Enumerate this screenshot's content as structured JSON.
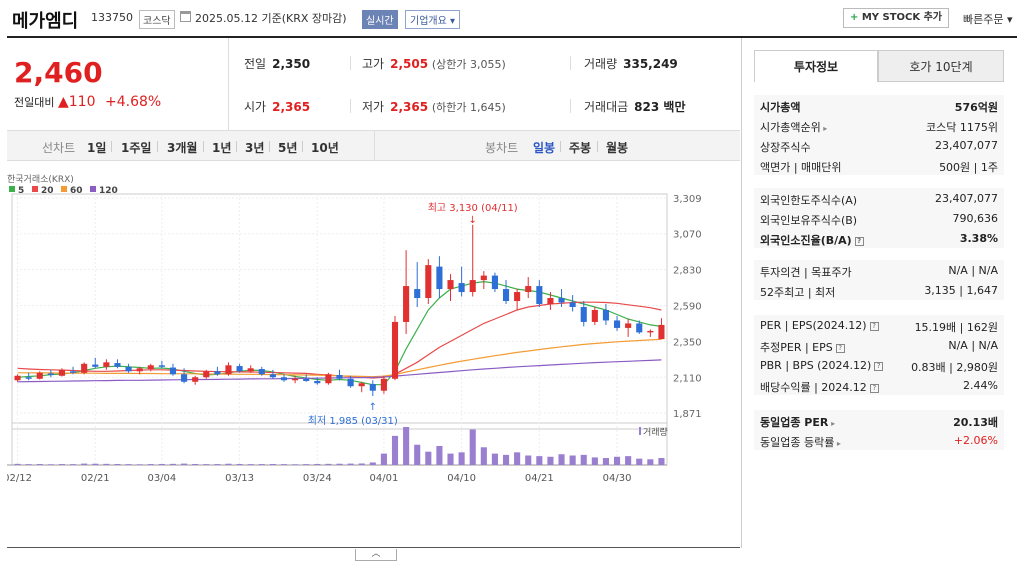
{
  "header": {
    "stock_name": "메가엠디",
    "stock_code": "133750",
    "market": "코스닥",
    "date": "2025.05.12 기준(KRX 장마감)",
    "realtime": "실시간",
    "corp_info": "기업개요 ▾",
    "mystock_label": "MY STOCK 추가",
    "quick_order": "빠른주문 ▾"
  },
  "price": {
    "current": "2,460",
    "diff_label": "전일대비",
    "diff_arrow": "▲",
    "diff_value": "110",
    "diff_pct": "+4.68%"
  },
  "stats": {
    "prev_label": "전일",
    "prev": "2,350",
    "high_label": "고가",
    "high": "2,505",
    "upper_label": "(상한가",
    "upper": "3,055",
    "upper_close": ")",
    "volume_label": "거래량",
    "volume": "335,249",
    "open_label": "시가",
    "open": "2,365",
    "low_label": "저가",
    "low": "2,365",
    "lower_label": "(하한가",
    "lower": "1,645",
    "lower_close": ")",
    "amount_label": "거래대금",
    "amount": "823 백만"
  },
  "period_tabs": {
    "label": "선차트",
    "items": [
      "1일",
      "1주일",
      "3개월",
      "1년",
      "3년",
      "5년",
      "10년"
    ]
  },
  "candle_tabs": {
    "label": "봉차트",
    "items": [
      "일봉",
      "주봉",
      "월봉"
    ],
    "active": "일봉"
  },
  "chart_data": {
    "type": "candlestick",
    "source_label": "한국거래소(KRX)",
    "legend": [
      {
        "name": "5",
        "color": "#3cb04a"
      },
      {
        "name": "20",
        "color": "#e84a4a"
      },
      {
        "name": "60",
        "color": "#f39c33"
      },
      {
        "name": "120",
        "color": "#8a5cc4"
      }
    ],
    "y_ticks": [
      "3,309",
      "3,070",
      "2,830",
      "2,590",
      "2,350",
      "2,110",
      "1,871"
    ],
    "y_tick_values": [
      3309,
      3070,
      2830,
      2590,
      2350,
      2110,
      1871
    ],
    "ylim": [
      1871,
      3309
    ],
    "x_ticks": [
      {
        "label": "02/12",
        "index": 0
      },
      {
        "label": "02/21",
        "index": 7
      },
      {
        "label": "03/04",
        "index": 13
      },
      {
        "label": "03/13",
        "index": 20
      },
      {
        "label": "03/24",
        "index": 27
      },
      {
        "label": "04/01",
        "index": 33
      },
      {
        "label": "04/10",
        "index": 40
      },
      {
        "label": "04/21",
        "index": 47
      },
      {
        "label": "04/30",
        "index": 54
      }
    ],
    "max_annotation": "최고 3,130 (04/11)",
    "min_annotation": "최저 1,985 (03/31)",
    "max_index": 41,
    "min_index": 32,
    "volume_label": "거래량",
    "candles": [
      [
        2090,
        2130,
        2080,
        2120
      ],
      [
        2110,
        2140,
        2090,
        2100
      ],
      [
        2100,
        2150,
        2095,
        2140
      ],
      [
        2135,
        2160,
        2110,
        2125
      ],
      [
        2120,
        2170,
        2115,
        2160
      ],
      [
        2150,
        2180,
        2130,
        2140
      ],
      [
        2140,
        2210,
        2130,
        2200
      ],
      [
        2195,
        2240,
        2170,
        2180
      ],
      [
        2180,
        2230,
        2160,
        2210
      ],
      [
        2205,
        2230,
        2170,
        2180
      ],
      [
        2180,
        2200,
        2140,
        2150
      ],
      [
        2150,
        2180,
        2130,
        2170
      ],
      [
        2165,
        2200,
        2150,
        2190
      ],
      [
        2190,
        2220,
        2170,
        2180
      ],
      [
        2175,
        2200,
        2120,
        2130
      ],
      [
        2130,
        2170,
        2070,
        2080
      ],
      [
        2080,
        2120,
        2060,
        2110
      ],
      [
        2110,
        2160,
        2100,
        2150
      ],
      [
        2150,
        2180,
        2120,
        2130
      ],
      [
        2130,
        2210,
        2120,
        2190
      ],
      [
        2185,
        2200,
        2140,
        2150
      ],
      [
        2150,
        2190,
        2140,
        2170
      ],
      [
        2165,
        2180,
        2120,
        2130
      ],
      [
        2130,
        2160,
        2100,
        2110
      ],
      [
        2110,
        2130,
        2080,
        2090
      ],
      [
        2090,
        2120,
        2070,
        2100
      ],
      [
        2100,
        2130,
        2080,
        2085
      ],
      [
        2085,
        2110,
        2060,
        2070
      ],
      [
        2070,
        2140,
        2060,
        2130
      ],
      [
        2125,
        2160,
        2090,
        2100
      ],
      [
        2100,
        2120,
        2040,
        2050
      ],
      [
        2050,
        2080,
        2010,
        2070
      ],
      [
        2065,
        2090,
        1985,
        2020
      ],
      [
        2020,
        2120,
        2000,
        2100
      ],
      [
        2100,
        2520,
        2090,
        2480
      ],
      [
        2480,
        2960,
        2400,
        2720
      ],
      [
        2700,
        2880,
        2580,
        2640
      ],
      [
        2640,
        2900,
        2600,
        2860
      ],
      [
        2850,
        2920,
        2640,
        2700
      ],
      [
        2700,
        2800,
        2620,
        2760
      ],
      [
        2740,
        2850,
        2650,
        2680
      ],
      [
        2680,
        3130,
        2650,
        2760
      ],
      [
        2760,
        2820,
        2700,
        2790
      ],
      [
        2790,
        2810,
        2680,
        2700
      ],
      [
        2700,
        2760,
        2600,
        2620
      ],
      [
        2620,
        2700,
        2560,
        2680
      ],
      [
        2680,
        2780,
        2640,
        2720
      ],
      [
        2720,
        2760,
        2580,
        2600
      ],
      [
        2600,
        2680,
        2560,
        2640
      ],
      [
        2640,
        2700,
        2580,
        2610
      ],
      [
        2610,
        2660,
        2550,
        2580
      ],
      [
        2580,
        2620,
        2450,
        2480
      ],
      [
        2480,
        2580,
        2460,
        2560
      ],
      [
        2560,
        2600,
        2460,
        2490
      ],
      [
        2490,
        2520,
        2420,
        2440
      ],
      [
        2440,
        2500,
        2380,
        2470
      ],
      [
        2470,
        2490,
        2400,
        2410
      ],
      [
        2410,
        2430,
        2380,
        2420
      ],
      [
        2365,
        2505,
        2365,
        2460
      ]
    ],
    "volumes": [
      18,
      14,
      16,
      12,
      15,
      14,
      22,
      20,
      18,
      16,
      14,
      12,
      15,
      16,
      18,
      22,
      16,
      14,
      15,
      20,
      16,
      14,
      15,
      16,
      14,
      12,
      14,
      16,
      18,
      20,
      22,
      24,
      40,
      180,
      460,
      600,
      320,
      210,
      300,
      180,
      200,
      560,
      280,
      180,
      160,
      200,
      150,
      140,
      130,
      170,
      150,
      160,
      120,
      110,
      130,
      140,
      100,
      90,
      110
    ],
    "ma_lines": {
      "ma5": [
        2110,
        2115,
        2120,
        2128,
        2132,
        2140,
        2155,
        2170,
        2180,
        2185,
        2180,
        2175,
        2170,
        2172,
        2165,
        2150,
        2135,
        2125,
        2130,
        2140,
        2150,
        2158,
        2155,
        2145,
        2130,
        2115,
        2105,
        2095,
        2090,
        2095,
        2090,
        2075,
        2060,
        2060,
        2150,
        2300,
        2430,
        2560,
        2640,
        2700,
        2720,
        2740,
        2750,
        2740,
        2720,
        2700,
        2690,
        2680,
        2660,
        2640,
        2620,
        2600,
        2580,
        2560,
        2530,
        2500,
        2480,
        2460,
        2450
      ],
      "ma20": [
        2170,
        2165,
        2162,
        2160,
        2158,
        2155,
        2152,
        2150,
        2150,
        2152,
        2155,
        2158,
        2160,
        2160,
        2158,
        2155,
        2152,
        2150,
        2148,
        2147,
        2146,
        2145,
        2144,
        2142,
        2140,
        2138,
        2136,
        2130,
        2125,
        2120,
        2115,
        2110,
        2105,
        2110,
        2130,
        2170,
        2210,
        2260,
        2310,
        2350,
        2390,
        2430,
        2470,
        2500,
        2530,
        2560,
        2580,
        2590,
        2600,
        2605,
        2610,
        2612,
        2612,
        2610,
        2605,
        2595,
        2585,
        2575,
        2560
      ],
      "ma60": [
        2140,
        2140,
        2139,
        2139,
        2138,
        2138,
        2137,
        2137,
        2136,
        2136,
        2136,
        2135,
        2135,
        2134,
        2134,
        2133,
        2133,
        2132,
        2132,
        2131,
        2130,
        2130,
        2129,
        2128,
        2127,
        2126,
        2125,
        2124,
        2122,
        2120,
        2118,
        2116,
        2114,
        2118,
        2128,
        2145,
        2160,
        2175,
        2190,
        2205,
        2218,
        2230,
        2242,
        2254,
        2265,
        2276,
        2286,
        2296,
        2305,
        2314,
        2322,
        2330,
        2336,
        2342,
        2347,
        2352,
        2356,
        2360,
        2364
      ],
      "ma120": [
        2080,
        2081,
        2082,
        2083,
        2084,
        2085,
        2086,
        2087,
        2088,
        2089,
        2090,
        2090,
        2091,
        2092,
        2093,
        2094,
        2095,
        2095,
        2096,
        2097,
        2098,
        2099,
        2100,
        2100,
        2101,
        2102,
        2103,
        2104,
        2105,
        2106,
        2107,
        2108,
        2109,
        2112,
        2118,
        2124,
        2130,
        2136,
        2142,
        2148,
        2154,
        2160,
        2165,
        2170,
        2175,
        2180,
        2184,
        2188,
        2192,
        2196,
        2200,
        2204,
        2208,
        2211,
        2214,
        2217,
        2220,
        2223,
        2226
      ]
    }
  },
  "right_panel": {
    "tab_on": "투자정보",
    "tab_off": "호가 10단계",
    "sections": [
      {
        "rows": [
          {
            "k": "시가총액",
            "v": "576억원",
            "kb": true,
            "vb": true
          },
          {
            "k": "시가총액순위",
            "v": "코스닥 1175위",
            "tri": true
          },
          {
            "k": "상장주식수",
            "v": "23,407,077"
          },
          {
            "k": "액면가 | 매매단위",
            "v": "500원 | 1주"
          }
        ]
      },
      {
        "rows": [
          {
            "k": "외국인한도주식수(A)",
            "v": "23,407,077"
          },
          {
            "k": "외국인보유주식수(B)",
            "v": "790,636"
          },
          {
            "k": "외국인소진율(B/A)",
            "v": "3.38%",
            "kb": true,
            "vb": true,
            "q": true
          }
        ]
      },
      {
        "rows": [
          {
            "k": "투자의견 | 목표주가",
            "v": "N/A | N/A"
          },
          {
            "k": "52주최고 | 최저",
            "v": "3,135 | 1,647"
          }
        ]
      },
      {
        "rows": [
          {
            "k": "PER | EPS(2024.12)",
            "v": "15.19배 | 162원",
            "q": true
          },
          {
            "k": "추정PER | EPS",
            "v": "N/A | N/A",
            "q": true
          },
          {
            "k": "PBR | BPS (2024.12)",
            "v": "0.83배 | 2,980원",
            "q": true
          },
          {
            "k": "배당수익률 | 2024.12",
            "v": "2.44%",
            "q": true
          }
        ]
      },
      {
        "rows": [
          {
            "k": "동일업종 PER",
            "v": "20.13배",
            "kb": true,
            "vb": true,
            "tri": true
          },
          {
            "k": "동일업종 등락률",
            "v": "+2.06%",
            "red": true,
            "tri": true
          }
        ]
      }
    ]
  }
}
